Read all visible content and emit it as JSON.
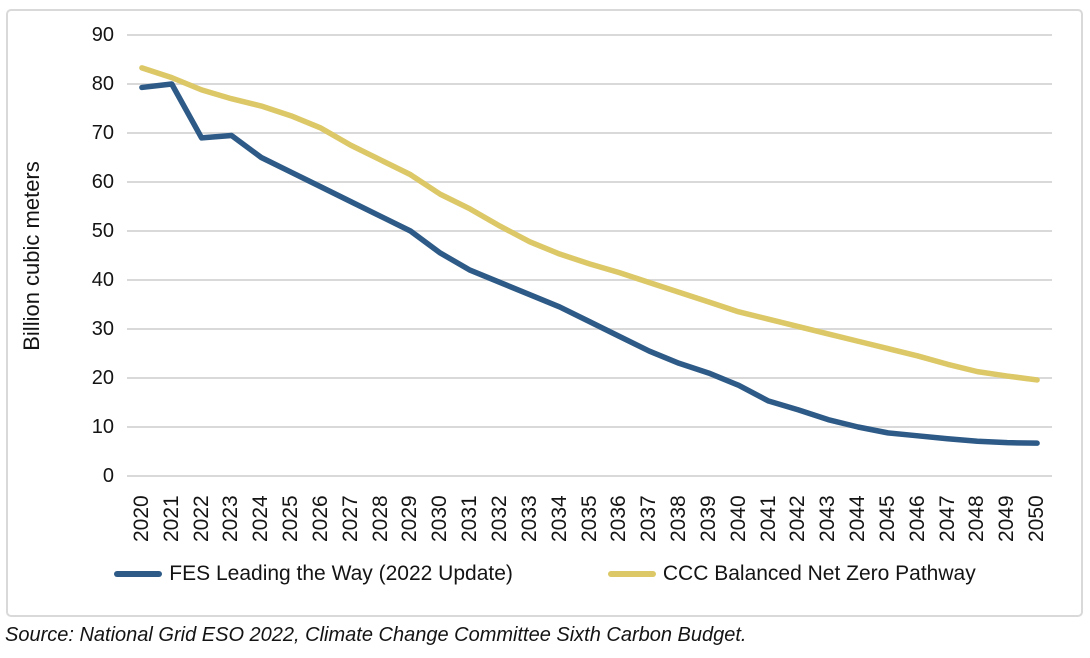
{
  "chart_data": {
    "type": "line",
    "title": "",
    "xlabel": "",
    "ylabel": "Billion cubic meters",
    "ylim": [
      0,
      90
    ],
    "yticks": [
      0,
      10,
      20,
      30,
      40,
      50,
      60,
      70,
      80,
      90
    ],
    "grid": true,
    "legend_position": "bottom",
    "x": [
      2020,
      2021,
      2022,
      2023,
      2024,
      2025,
      2026,
      2027,
      2028,
      2029,
      2030,
      2031,
      2032,
      2033,
      2034,
      2035,
      2036,
      2037,
      2038,
      2039,
      2040,
      2041,
      2042,
      2043,
      2044,
      2045,
      2046,
      2047,
      2048,
      2049,
      2050
    ],
    "series": [
      {
        "name": "FES Leading the Way (2022 Update)",
        "color": "#2d5a87",
        "values": [
          79.3,
          80,
          69,
          69.5,
          65,
          62,
          59,
          56,
          53,
          50,
          45.5,
          42,
          39.5,
          37,
          34.5,
          31.5,
          28.5,
          25.5,
          23,
          21,
          18.5,
          15.3,
          13.5,
          11.5,
          10,
          8.8,
          8.2,
          7.6,
          7.1,
          6.8,
          6.7
        ]
      },
      {
        "name": "CCC Balanced Net Zero Pathway",
        "color": "#dcc867",
        "values": [
          83.3,
          81.3,
          78.8,
          77,
          75.5,
          73.5,
          71,
          67.5,
          64.5,
          61.5,
          57.5,
          54.5,
          51,
          47.8,
          45.3,
          43.3,
          41.5,
          39.5,
          37.5,
          35.5,
          33.5,
          32,
          30.5,
          29,
          27.5,
          26,
          24.5,
          22.8,
          21.3,
          20.4,
          19.6
        ]
      }
    ],
    "gridline_color": "#d9d9d9"
  },
  "source_note": "Source: National Grid ESO 2022, Climate Change Committee Sixth Carbon Budget."
}
